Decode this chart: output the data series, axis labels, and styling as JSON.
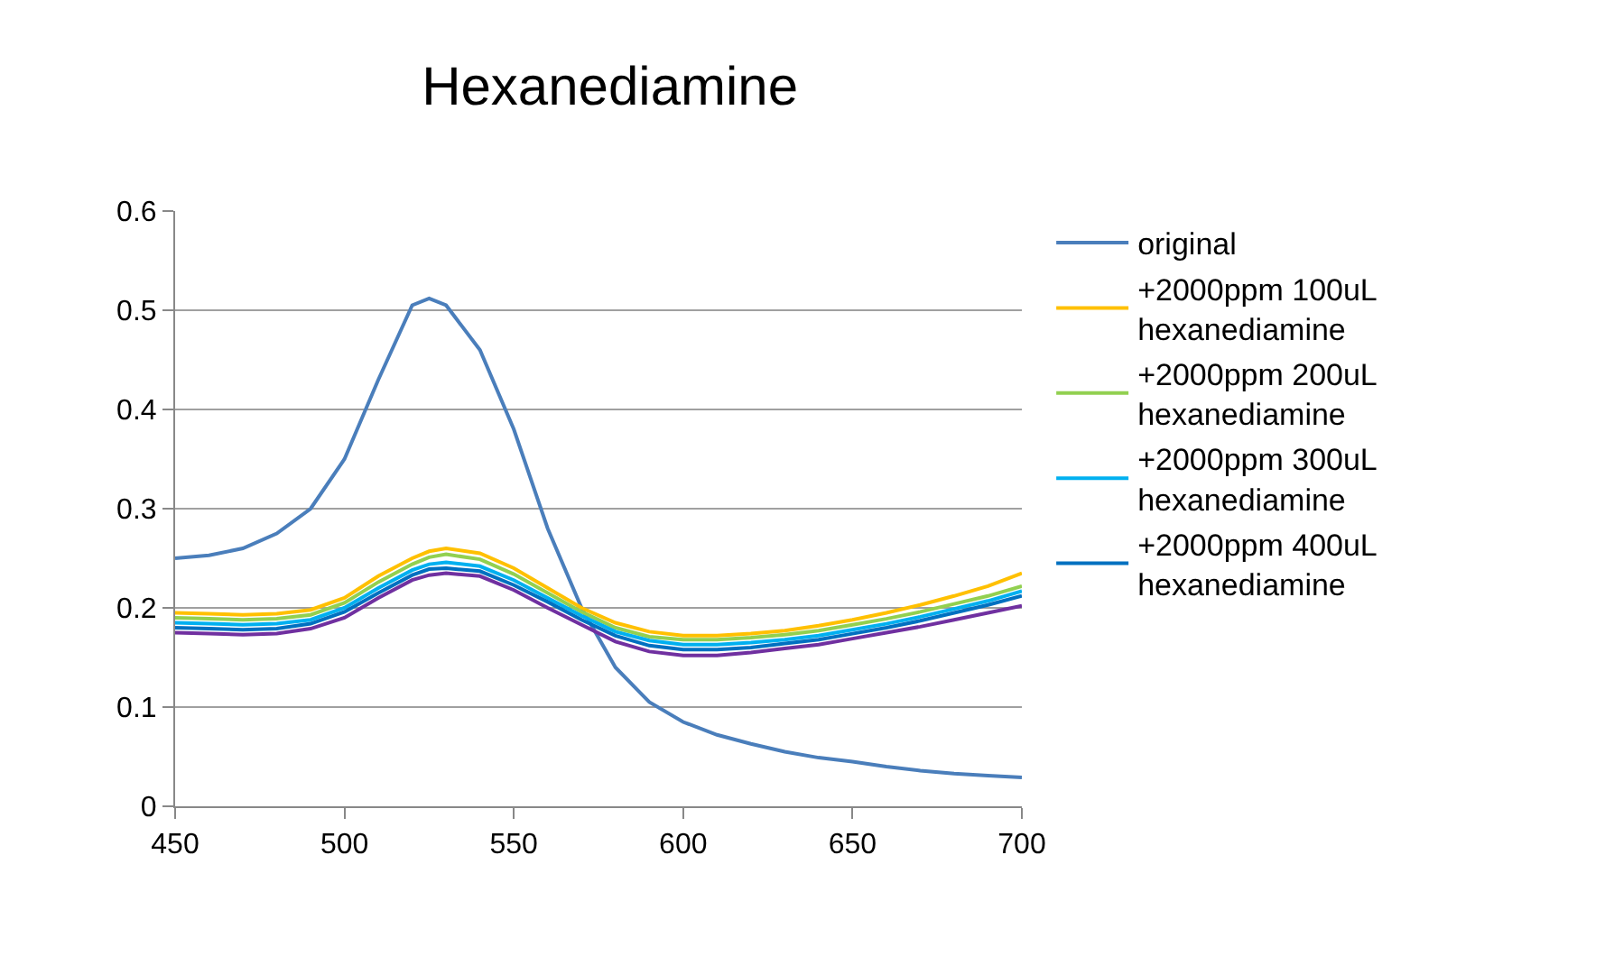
{
  "chart_data": {
    "type": "line",
    "title": "Hexanediamine",
    "x": [
      450,
      460,
      470,
      480,
      490,
      500,
      510,
      520,
      525,
      530,
      540,
      550,
      560,
      570,
      580,
      590,
      600,
      610,
      620,
      630,
      640,
      650,
      660,
      670,
      680,
      690,
      700
    ],
    "series": [
      {
        "name": "original",
        "color": "#4a7ebb",
        "values": [
          0.25,
          0.253,
          0.26,
          0.275,
          0.3,
          0.35,
          0.43,
          0.505,
          0.512,
          0.505,
          0.46,
          0.38,
          0.28,
          0.2,
          0.14,
          0.105,
          0.085,
          0.072,
          0.063,
          0.055,
          0.049,
          0.045,
          0.04,
          0.036,
          0.033,
          0.031,
          0.029
        ]
      },
      {
        "name": "+2000ppm 100uL\nhexanediamine",
        "color": "#ffc000",
        "values": [
          0.195,
          0.194,
          0.193,
          0.194,
          0.198,
          0.21,
          0.232,
          0.25,
          0.257,
          0.26,
          0.255,
          0.24,
          0.22,
          0.2,
          0.185,
          0.176,
          0.172,
          0.172,
          0.174,
          0.177,
          0.182,
          0.188,
          0.195,
          0.203,
          0.212,
          0.222,
          0.235
        ]
      },
      {
        "name": "+2000ppm 200uL\nhexanediamine",
        "color": "#92d050",
        "values": [
          0.19,
          0.189,
          0.188,
          0.189,
          0.193,
          0.205,
          0.226,
          0.244,
          0.251,
          0.254,
          0.249,
          0.234,
          0.215,
          0.196,
          0.18,
          0.171,
          0.168,
          0.168,
          0.17,
          0.173,
          0.177,
          0.183,
          0.189,
          0.196,
          0.204,
          0.212,
          0.222
        ]
      },
      {
        "name": "+2000ppm 300uL\nhexanediamine",
        "color": "#00b0f0",
        "values": [
          0.185,
          0.184,
          0.183,
          0.184,
          0.188,
          0.2,
          0.22,
          0.238,
          0.244,
          0.246,
          0.242,
          0.228,
          0.21,
          0.192,
          0.176,
          0.167,
          0.163,
          0.163,
          0.165,
          0.168,
          0.172,
          0.178,
          0.184,
          0.191,
          0.199,
          0.207,
          0.217
        ]
      },
      {
        "name": "+2000ppm 400uL\nhexanediamine",
        "color": "#0070c0",
        "values": [
          0.18,
          0.179,
          0.178,
          0.179,
          0.184,
          0.196,
          0.215,
          0.233,
          0.239,
          0.24,
          0.237,
          0.223,
          0.206,
          0.188,
          0.172,
          0.162,
          0.158,
          0.158,
          0.16,
          0.164,
          0.168,
          0.174,
          0.18,
          0.187,
          0.195,
          0.203,
          0.212
        ]
      },
      {
        "color": "#7030a0",
        "values": [
          0.175,
          0.174,
          0.173,
          0.174,
          0.179,
          0.19,
          0.21,
          0.228,
          0.233,
          0.235,
          0.232,
          0.218,
          0.2,
          0.183,
          0.166,
          0.156,
          0.152,
          0.152,
          0.155,
          0.159,
          0.163,
          0.169,
          0.175,
          0.181,
          0.188,
          0.195,
          0.202
        ]
      }
    ],
    "xlim": [
      450,
      700
    ],
    "xticks": [
      450,
      500,
      550,
      600,
      650,
      700
    ],
    "ylim": [
      0,
      0.6
    ],
    "yticks": [
      0,
      0.1,
      0.2,
      0.3,
      0.4,
      0.5,
      0.6
    ],
    "grid": "y",
    "legend": "right",
    "marker": "none",
    "line_style": "solid"
  }
}
